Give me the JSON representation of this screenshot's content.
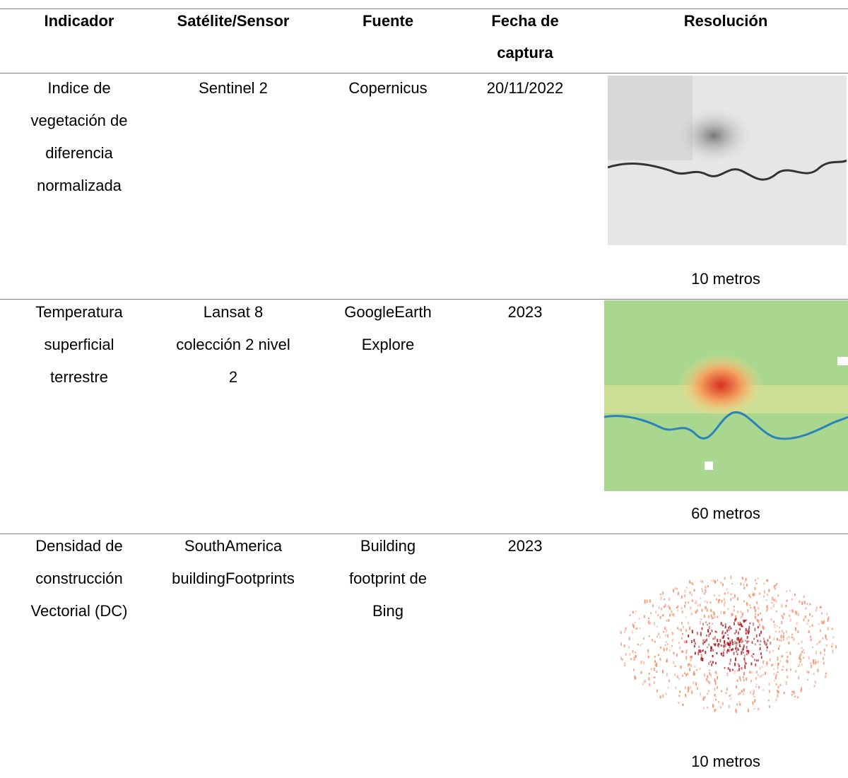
{
  "table": {
    "header": [
      [
        "Indicador"
      ],
      [
        "Satélite/Sensor"
      ],
      [
        "Fuente"
      ],
      [
        "Fecha de",
        "captura"
      ],
      [
        "Resolución"
      ]
    ],
    "rows": [
      {
        "cells": [
          [
            "Indice de",
            "vegetación de",
            "diferencia",
            "normalizada"
          ],
          [
            "Sentinel 2"
          ],
          [
            "Copernicus"
          ],
          [
            "20/11/2022"
          ]
        ],
        "resolution": "10 metros"
      },
      {
        "cells": [
          [
            "Temperatura",
            "superficial",
            "terrestre"
          ],
          [
            "Lansat 8",
            "colección 2 nivel",
            "2"
          ],
          [
            "GoogleEarth",
            "Explore"
          ],
          [
            "2023"
          ]
        ],
        "resolution": "60 metros"
      },
      {
        "cells": [
          [
            "Densidad de",
            "construcción",
            "Vectorial (DC)"
          ],
          [
            "SouthAmerica",
            "buildingFootprints"
          ],
          [
            "Building",
            "footprint de",
            "Bing"
          ],
          [
            "2023"
          ]
        ],
        "resolution": "10 metros"
      }
    ]
  }
}
